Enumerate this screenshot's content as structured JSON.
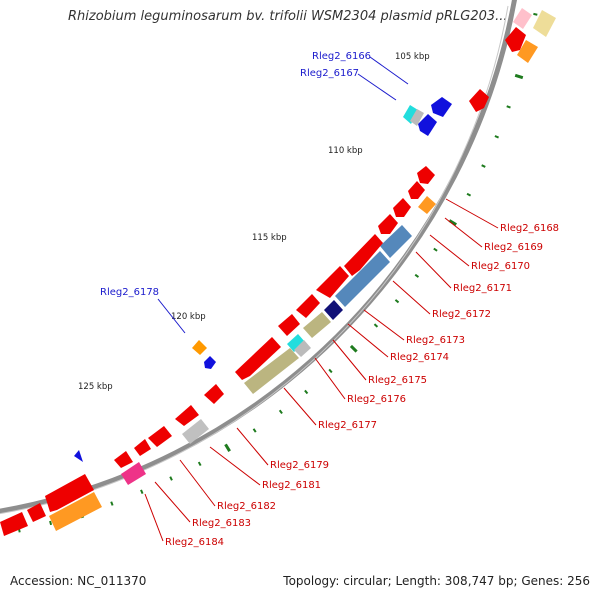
{
  "title": "Rhizobium leguminosarum bv. trifolii WSM2304 plasmid pRLG203...",
  "footer": {
    "accession": "Accession: NC_011370",
    "topology": "Topology: circular; Length: 308,747 bp; Genes: 256"
  },
  "colors": {
    "backbone": "#8a8a8a",
    "tick": "#1e7b1e",
    "label_red": "#cc0000",
    "label_blue": "#1a1acc"
  },
  "ticks": [
    {
      "label": "105 kbp",
      "kb": 105
    },
    {
      "label": "110 kbp",
      "kb": 110
    },
    {
      "label": "115 kbp",
      "kb": 115
    },
    {
      "label": "120 kbp",
      "kb": 120
    },
    {
      "label": "125 kbp",
      "kb": 125
    }
  ],
  "labels": [
    {
      "text": "Rleg2_6166",
      "color": "blue"
    },
    {
      "text": "Rleg2_6167",
      "color": "blue"
    },
    {
      "text": "Rleg2_6168",
      "color": "red"
    },
    {
      "text": "Rleg2_6169",
      "color": "red"
    },
    {
      "text": "Rleg2_6170",
      "color": "red"
    },
    {
      "text": "Rleg2_6171",
      "color": "red"
    },
    {
      "text": "Rleg2_6172",
      "color": "red"
    },
    {
      "text": "Rleg2_6173",
      "color": "red"
    },
    {
      "text": "Rleg2_6174",
      "color": "red"
    },
    {
      "text": "Rleg2_6175",
      "color": "red"
    },
    {
      "text": "Rleg2_6176",
      "color": "red"
    },
    {
      "text": "Rleg2_6177",
      "color": "red"
    },
    {
      "text": "Rleg2_6178",
      "color": "blue"
    },
    {
      "text": "Rleg2_6179",
      "color": "red"
    },
    {
      "text": "Rleg2_6181",
      "color": "red"
    },
    {
      "text": "Rleg2_6182",
      "color": "red"
    },
    {
      "text": "Rleg2_6183",
      "color": "red"
    },
    {
      "text": "Rleg2_6184",
      "color": "red"
    }
  ]
}
